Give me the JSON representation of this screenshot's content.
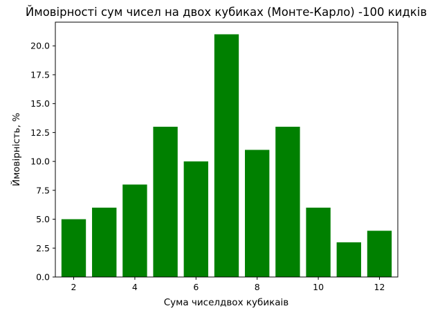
{
  "chart_data": {
    "type": "bar",
    "title": "Ймовірності сум чисел на двох кубиках (Монте-Карло) -100 кидків",
    "xlabel": "Сума чиселдвох кубикаів",
    "ylabel": "Ймовірність, %",
    "x": [
      2,
      3,
      4,
      5,
      6,
      7,
      8,
      9,
      10,
      11,
      12
    ],
    "values": [
      5,
      6,
      8,
      13,
      10,
      21,
      11,
      13,
      6,
      3,
      4
    ],
    "xlim": [
      1.4,
      12.6
    ],
    "ylim": [
      0,
      22.05
    ],
    "xticks": [
      2,
      4,
      6,
      8,
      10,
      12
    ],
    "xtick_labels": [
      "2",
      "4",
      "6",
      "8",
      "10",
      "12"
    ],
    "yticks": [
      0,
      2.5,
      5,
      7.5,
      10,
      12.5,
      15,
      17.5,
      20
    ],
    "ytick_labels": [
      "0.0",
      "2.5",
      "5.0",
      "7.5",
      "10.0",
      "12.5",
      "15.0",
      "17.5",
      "20.0"
    ],
    "bar_color": "#008000",
    "grid": false,
    "legend": "none"
  }
}
